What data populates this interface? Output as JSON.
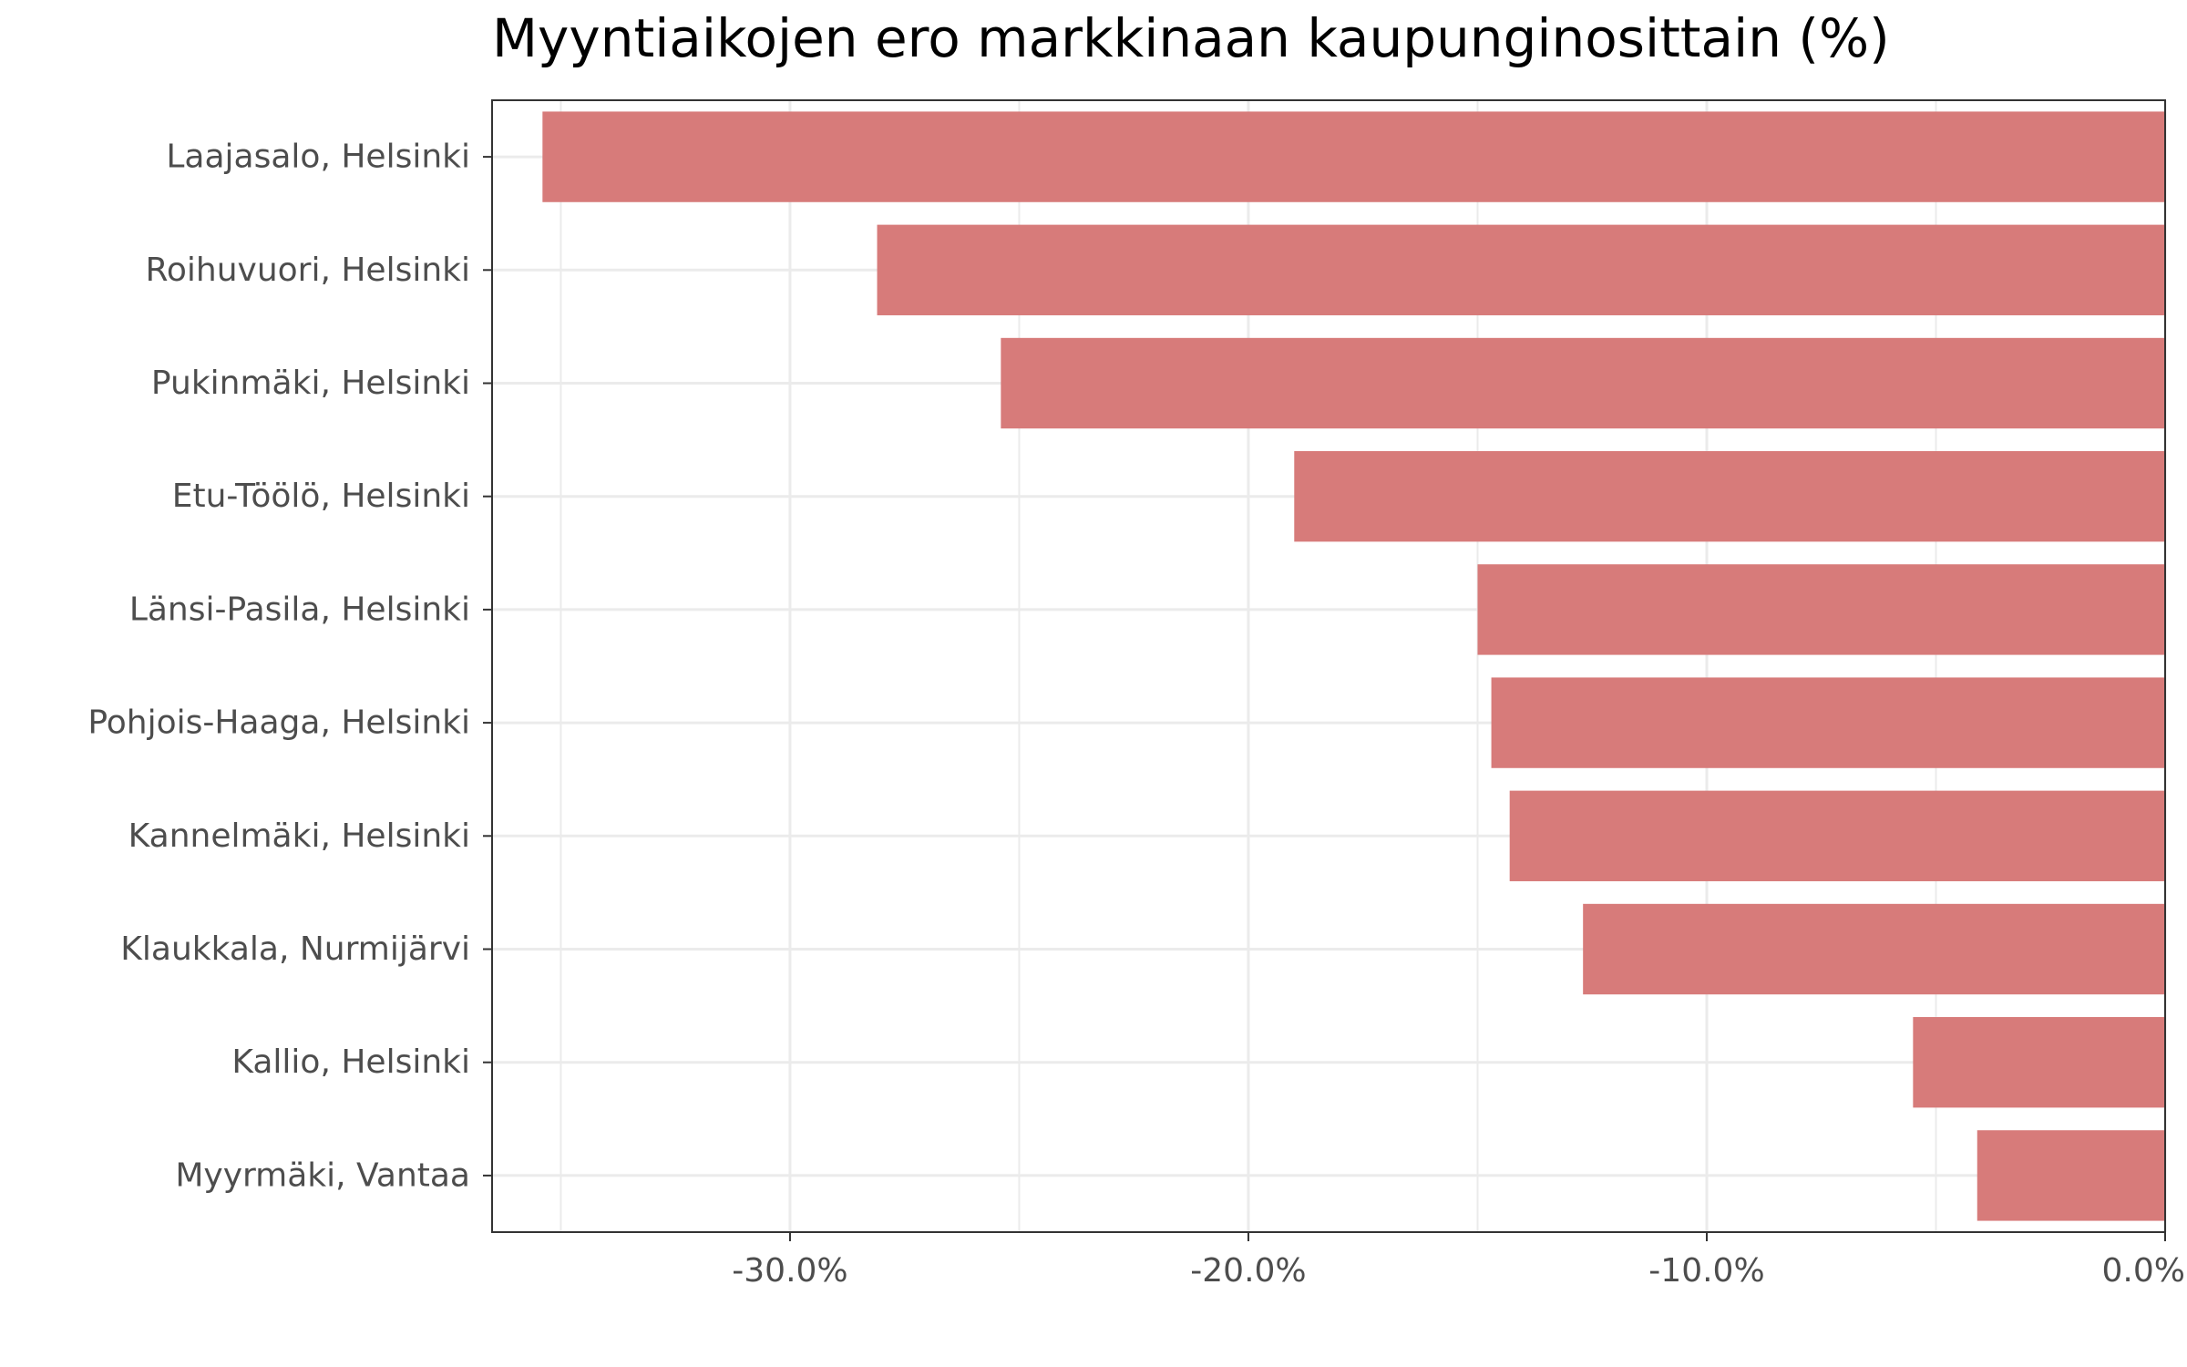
{
  "chart_data": {
    "type": "bar",
    "orientation": "horizontal",
    "title": "Myyntiaikojen ero markkinaan kaupunginosittain (%)",
    "xlabel": "",
    "ylabel": "",
    "categories": [
      "Laajasalo, Helsinki",
      "Roihuvuori, Helsinki",
      "Pukinmäki, Helsinki",
      "Etu-Töölö, Helsinki",
      "Länsi-Pasila, Helsinki",
      "Pohjois-Haaga, Helsinki",
      "Kannelmäki, Helsinki",
      "Klaukkala, Nurmijärvi",
      "Kallio, Helsinki",
      "Myyrmäki, Vantaa"
    ],
    "values": [
      -35.4,
      -28.1,
      -25.4,
      -19.0,
      -15.0,
      -14.7,
      -14.3,
      -12.7,
      -5.5,
      -4.1
    ],
    "xlim": [
      -36.5,
      0
    ],
    "xticks": [
      -30,
      -20,
      -10,
      0
    ],
    "xtick_labels": [
      "-30.0%",
      "-20.0%",
      "-10.0%",
      "0.0%"
    ],
    "grid": true,
    "legend": "none",
    "colors": {
      "bar": "#d77b7a",
      "grid": "#ebebeb",
      "axis": "#333333",
      "text": "#4d4d4d"
    }
  }
}
